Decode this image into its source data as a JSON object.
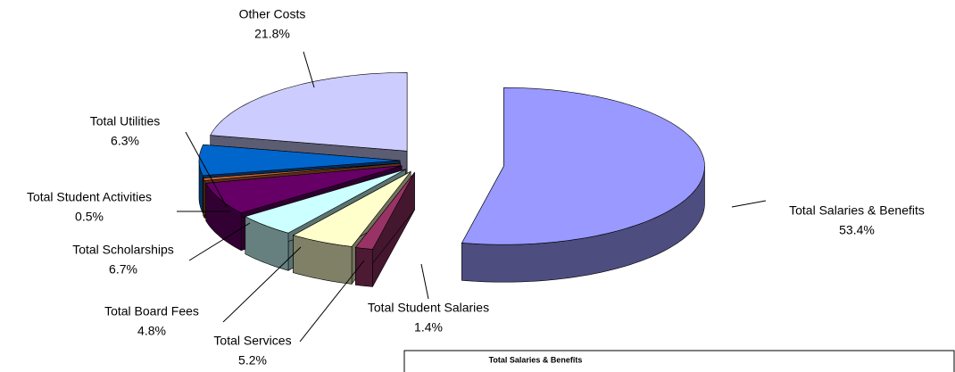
{
  "chart_data": {
    "type": "pie3d",
    "categories": [
      "Total Salaries & Benefits",
      "Total Student Salaries",
      "Total Services",
      "Total Board Fees",
      "Total Scholarships",
      "Total Student Activities",
      "Total Utilities",
      "Other Costs"
    ],
    "values": [
      53.4,
      1.4,
      5.2,
      4.8,
      6.7,
      0.5,
      6.3,
      21.8
    ],
    "value_labels": [
      "53.4%",
      "1.4%",
      "5.2%",
      "4.8%",
      "6.7%",
      "0.5%",
      "6.3%",
      "21.8%"
    ],
    "colors": [
      "#9999ff",
      "#993366",
      "#ffffcc",
      "#ccffff",
      "#660066",
      "#cc6633",
      "#0066cc",
      "#ccccff"
    ]
  }
}
